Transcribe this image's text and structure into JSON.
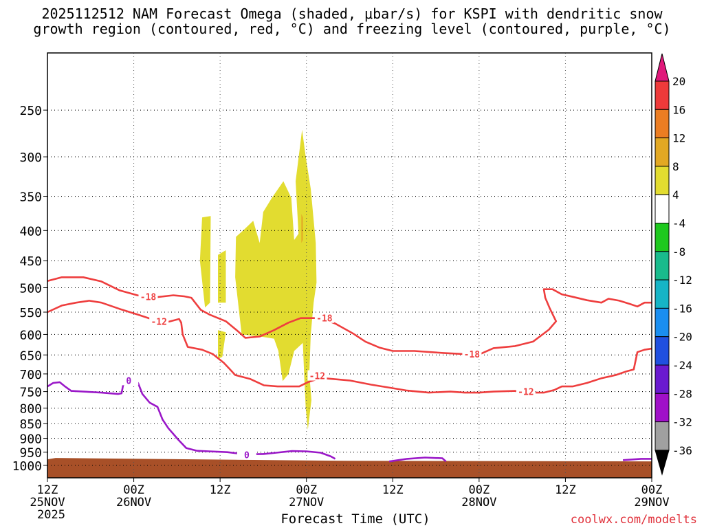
{
  "title": {
    "line1": "2025112512 NAM Forecast Omega (shaded, μbar/s) for KSPI with dendritic snow",
    "line2": "growth region (contoured, red, °C) and freezing level (contoured, purple, °C)"
  },
  "credit": "coolwx.com/modelts",
  "chart_data": {
    "type": "heatmap",
    "xlabel": "Forecast Time (UTC)",
    "ylabel": "",
    "x_range_hours": [
      0,
      84
    ],
    "y_scale": "log",
    "y_range_hPa": [
      1050,
      200
    ],
    "grid": "dotted",
    "x_ticks": [
      {
        "hour": 0,
        "label": "12Z",
        "sub": "25NOV",
        "sub2": "2025"
      },
      {
        "hour": 12,
        "label": "00Z",
        "sub": "26NOV"
      },
      {
        "hour": 24,
        "label": "12Z",
        "sub": ""
      },
      {
        "hour": 36,
        "label": "00Z",
        "sub": "27NOV"
      },
      {
        "hour": 48,
        "label": "12Z",
        "sub": ""
      },
      {
        "hour": 60,
        "label": "00Z",
        "sub": "28NOV"
      },
      {
        "hour": 72,
        "label": "12Z",
        "sub": ""
      },
      {
        "hour": 84,
        "label": "00Z",
        "sub": "29NOV"
      }
    ],
    "y_ticks": [
      250,
      300,
      350,
      400,
      450,
      500,
      550,
      600,
      650,
      700,
      750,
      800,
      850,
      900,
      950,
      1000
    ],
    "colorbar": {
      "labels": [
        "20",
        "16",
        "12",
        "8",
        "4",
        "-4",
        "-8",
        "-12",
        "-16",
        "-20",
        "-24",
        "-28",
        "-32",
        "-36"
      ],
      "colors": [
        "#e0187a",
        "#ee3a3a",
        "#ec7d22",
        "#e2a823",
        "#e2dc30",
        "#ffffff",
        "#1ec81e",
        "#19bb8c",
        "#16b4c6",
        "#1a8ef0",
        "#2050e0",
        "#6a1ad0",
        "#a010c8",
        "#a0a0a0",
        "#000000"
      ]
    },
    "omega_regions": [
      {
        "value": 4,
        "color": "#e2dc30",
        "points": [
          [
            21.5,
            380
          ],
          [
            22.7,
            378
          ],
          [
            22.6,
            530
          ],
          [
            21.9,
            540
          ],
          [
            21.2,
            450
          ]
        ]
      },
      {
        "value": 4,
        "color": "#e2dc30",
        "points": [
          [
            23.7,
            440
          ],
          [
            24.8,
            432
          ],
          [
            24.8,
            530
          ],
          [
            23.7,
            530
          ]
        ]
      },
      {
        "value": 4,
        "color": "#e2dc30",
        "points": [
          [
            23.7,
            590
          ],
          [
            24.8,
            595
          ],
          [
            24.3,
            655
          ],
          [
            23.7,
            660
          ]
        ]
      },
      {
        "value": 4,
        "color": "#e2dc30",
        "points": [
          [
            26.2,
            410
          ],
          [
            27.2,
            400
          ],
          [
            28.6,
            385
          ],
          [
            29.5,
            420
          ],
          [
            30.0,
            372
          ],
          [
            31.2,
            352
          ],
          [
            32.8,
            330
          ],
          [
            33.9,
            352
          ],
          [
            34.3,
            415
          ],
          [
            34.9,
            405
          ],
          [
            34.5,
            330
          ],
          [
            35.4,
            270
          ],
          [
            35.9,
            300
          ],
          [
            36.6,
            340
          ],
          [
            37.3,
            420
          ],
          [
            37.4,
            490
          ],
          [
            37.0,
            530
          ],
          [
            36.6,
            600
          ],
          [
            36.4,
            700
          ],
          [
            36.7,
            775
          ],
          [
            36.2,
            870
          ],
          [
            35.9,
            800
          ],
          [
            35.7,
            710
          ],
          [
            35.5,
            620
          ],
          [
            34.3,
            640
          ],
          [
            33.5,
            700
          ],
          [
            32.7,
            720
          ],
          [
            32.1,
            640
          ],
          [
            31.5,
            610
          ],
          [
            29.6,
            605
          ],
          [
            27.0,
            600
          ],
          [
            26.1,
            480
          ]
        ]
      },
      {
        "value": 8,
        "color": "#e2a823",
        "points": [
          [
            35.3,
            375
          ],
          [
            35.5,
            380
          ],
          [
            35.5,
            415
          ],
          [
            35.3,
            420
          ]
        ]
      }
    ],
    "isotherms": [
      {
        "name": "-18",
        "color": "#ee3e3e",
        "label_at": [
          [
            14.0,
            518
          ],
          [
            38.5,
            563
          ],
          [
            59.0,
            648
          ]
        ],
        "points": [
          [
            0,
            487
          ],
          [
            2,
            480
          ],
          [
            5,
            480
          ],
          [
            7.5,
            488
          ],
          [
            10,
            505
          ],
          [
            12.5,
            515
          ],
          [
            14.5,
            520
          ],
          [
            17.5,
            515
          ],
          [
            19,
            517
          ],
          [
            20,
            520
          ],
          [
            21.3,
            545
          ],
          [
            22.5,
            555
          ],
          [
            24.8,
            570
          ],
          [
            26.3,
            590
          ],
          [
            27.5,
            608
          ],
          [
            29.5,
            605
          ],
          [
            31.5,
            590
          ],
          [
            33.5,
            573
          ],
          [
            35.2,
            563
          ],
          [
            38,
            563
          ],
          [
            40,
            575
          ],
          [
            42.5,
            598
          ],
          [
            44.2,
            617
          ],
          [
            46.2,
            632
          ],
          [
            48,
            640
          ],
          [
            51,
            640
          ],
          [
            55,
            645
          ],
          [
            58,
            648
          ],
          [
            60,
            649
          ],
          [
            62,
            633
          ],
          [
            65,
            628
          ],
          [
            67.5,
            617
          ],
          [
            69.7,
            589
          ],
          [
            70.7,
            570
          ],
          [
            69.8,
            541
          ],
          [
            69.2,
            520
          ],
          [
            69,
            503
          ],
          [
            70.2,
            503
          ],
          [
            71.5,
            513
          ],
          [
            73,
            518
          ],
          [
            75,
            525
          ],
          [
            77,
            530
          ],
          [
            78,
            522
          ],
          [
            79.5,
            526
          ],
          [
            81,
            533
          ],
          [
            82,
            538
          ],
          [
            83,
            530
          ],
          [
            84,
            530
          ]
        ]
      },
      {
        "name": "-12",
        "color": "#ee3e3e",
        "label_at": [
          [
            15.5,
            570
          ],
          [
            37.5,
            705
          ],
          [
            66.5,
            750
          ]
        ],
        "points": [
          [
            0,
            550
          ],
          [
            2,
            536
          ],
          [
            4,
            530
          ],
          [
            5.8,
            526
          ],
          [
            7.5,
            530
          ],
          [
            10,
            543
          ],
          [
            12.5,
            555
          ],
          [
            15,
            568
          ],
          [
            16.6,
            572
          ],
          [
            18.3,
            565
          ],
          [
            18.6,
            573
          ],
          [
            18.8,
            600
          ],
          [
            19.5,
            630
          ],
          [
            21.5,
            637
          ],
          [
            23,
            648
          ],
          [
            24.5,
            670
          ],
          [
            25.3,
            686
          ],
          [
            26.1,
            703
          ],
          [
            28.2,
            714
          ],
          [
            30.1,
            732
          ],
          [
            32,
            735
          ],
          [
            35,
            735
          ],
          [
            36.2,
            723
          ],
          [
            37.4,
            715
          ],
          [
            38.5,
            712
          ],
          [
            42,
            718
          ],
          [
            45,
            730
          ],
          [
            48,
            740
          ],
          [
            50,
            747
          ],
          [
            53,
            753
          ],
          [
            56,
            750
          ],
          [
            58,
            753
          ],
          [
            60,
            753
          ],
          [
            62,
            750
          ],
          [
            65,
            748
          ],
          [
            67,
            753
          ],
          [
            69,
            753
          ],
          [
            70.5,
            745
          ],
          [
            71.5,
            735
          ],
          [
            73,
            735
          ],
          [
            75,
            725
          ],
          [
            77,
            712
          ],
          [
            79,
            703
          ],
          [
            80.5,
            693
          ],
          [
            81.5,
            688
          ],
          [
            82,
            643
          ],
          [
            83,
            637
          ],
          [
            84,
            634
          ]
        ]
      },
      {
        "name": "0",
        "color": "#9a18c8",
        "label_at": [
          [
            11.3,
            718
          ],
          [
            27.7,
            960
          ]
        ],
        "points": [
          [
            0,
            735
          ],
          [
            0.8,
            725
          ],
          [
            1.7,
            723
          ],
          [
            2.5,
            736
          ],
          [
            3.3,
            748
          ],
          [
            5,
            750
          ],
          [
            7.5,
            753
          ],
          [
            9.8,
            757
          ],
          [
            10.3,
            755
          ],
          [
            10.5,
            733
          ],
          [
            10.9,
            717
          ],
          [
            11.8,
            715
          ],
          [
            12.6,
            725
          ],
          [
            13.2,
            757
          ],
          [
            14.2,
            783
          ],
          [
            15.3,
            796
          ],
          [
            16,
            836
          ],
          [
            16.8,
            865
          ],
          [
            18.2,
            905
          ],
          [
            19.3,
            935
          ],
          [
            20.8,
            945
          ],
          [
            22.5,
            947
          ],
          [
            25,
            950
          ],
          [
            27.5,
            958
          ],
          [
            30,
            957
          ],
          [
            31.8,
            952
          ],
          [
            34,
            946
          ],
          [
            36,
            947
          ],
          [
            38,
            952
          ],
          [
            39.4,
            966
          ],
          [
            40,
            975
          ]
        ],
        "extra_segments": [
          [
            [
              47.5,
              985
            ],
            [
              50,
              975
            ],
            [
              52.5,
              970
            ],
            [
              54.9,
              973
            ],
            [
              55.4,
              985
            ]
          ],
          [
            [
              80,
              980
            ],
            [
              82.5,
              975
            ],
            [
              84,
              975
            ]
          ]
        ]
      }
    ],
    "terrain": {
      "color": "#a85028",
      "surface_hPa": 977
    }
  }
}
